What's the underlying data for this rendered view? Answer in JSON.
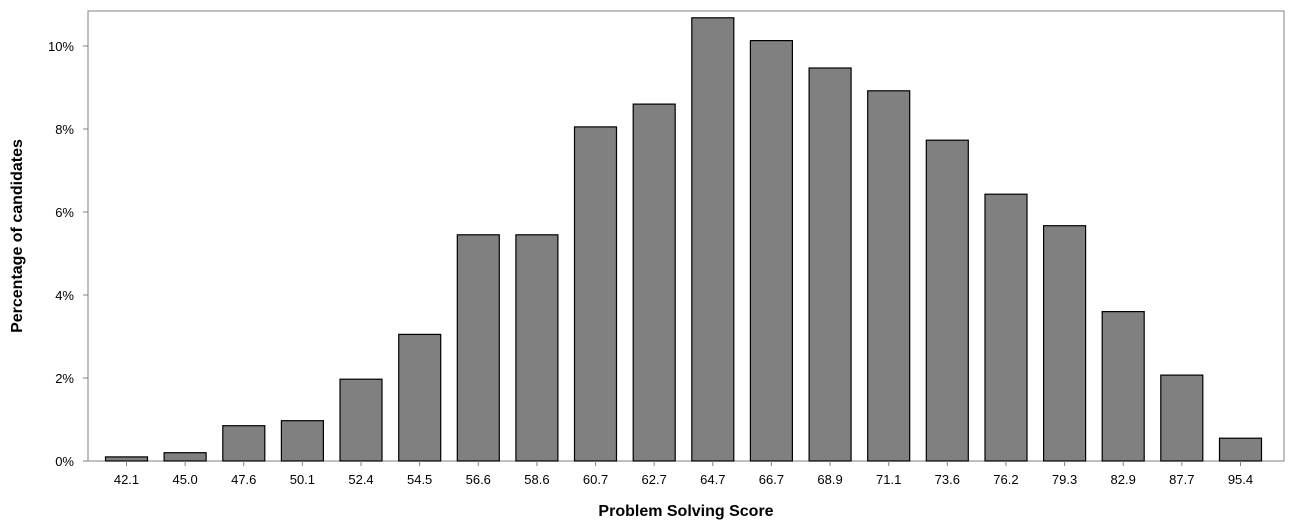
{
  "chart_data": {
    "type": "bar",
    "title": "",
    "xlabel": "Problem Solving Score",
    "ylabel": "Percentage of candidates",
    "categories": [
      "42.1",
      "45.0",
      "47.6",
      "50.1",
      "52.4",
      "54.5",
      "56.6",
      "58.6",
      "60.7",
      "62.7",
      "64.7",
      "66.7",
      "68.9",
      "71.1",
      "73.6",
      "76.2",
      "79.3",
      "82.9",
      "87.7",
      "95.4"
    ],
    "values": [
      0.1,
      0.2,
      0.85,
      0.97,
      1.97,
      3.05,
      5.45,
      5.45,
      8.05,
      8.6,
      10.68,
      10.13,
      9.47,
      8.92,
      7.73,
      6.43,
      5.67,
      3.6,
      2.07,
      0.55
    ],
    "ylim": [
      0,
      10.8
    ],
    "yticks": [
      0,
      2,
      4,
      6,
      8,
      10
    ],
    "ytick_labels": [
      "0%",
      "2%",
      "4%",
      "6%",
      "8%",
      "10%"
    ],
    "bar_color": "#808080",
    "grid": false,
    "legend": "none"
  }
}
